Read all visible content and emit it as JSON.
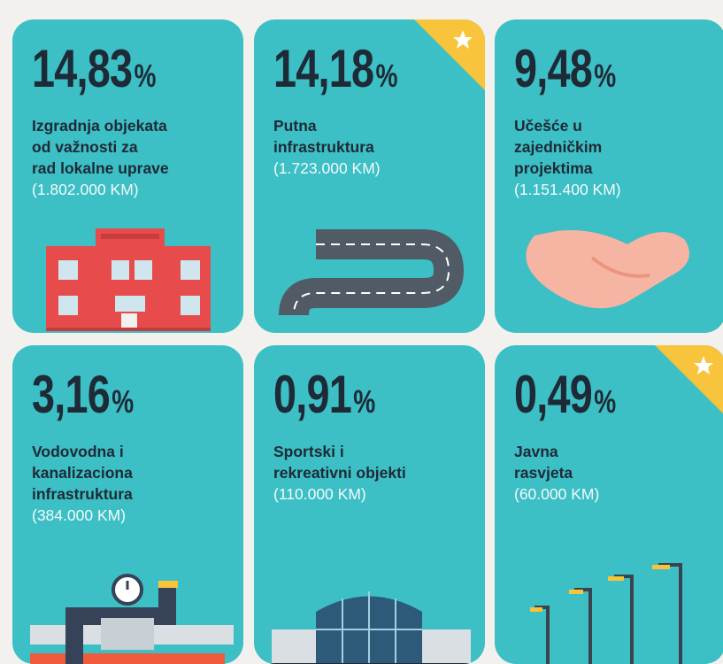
{
  "cards": [
    {
      "value": "14,83",
      "unit": "%",
      "title": [
        "Izgradnja objekata",
        "od važnosti za",
        "rad lokalne uprave"
      ],
      "amount": "(1.802.000 KM)"
    },
    {
      "value": "14,18",
      "unit": "%",
      "title": [
        "Putna",
        "infrastruktura"
      ],
      "amount": "(1.723.000 KM)"
    },
    {
      "value": "9,48",
      "unit": "%",
      "title": [
        "Učešće u",
        "zajedničkim",
        "projektima"
      ],
      "amount": "(1.151.400 KM)"
    },
    {
      "value": "3,16",
      "unit": "%",
      "title": [
        "Vodovodna i",
        "kanalizaciona",
        "infrastruktura"
      ],
      "amount": "(384.000 KM)"
    },
    {
      "value": "0,91",
      "unit": "%",
      "title": [
        "Sportski i",
        "rekreativni objekti"
      ],
      "amount": "(110.000 KM)"
    },
    {
      "value": "0,49",
      "unit": "%",
      "title": [
        "Javna",
        "rasvjeta"
      ],
      "amount": "(60.000 KM)"
    }
  ]
}
